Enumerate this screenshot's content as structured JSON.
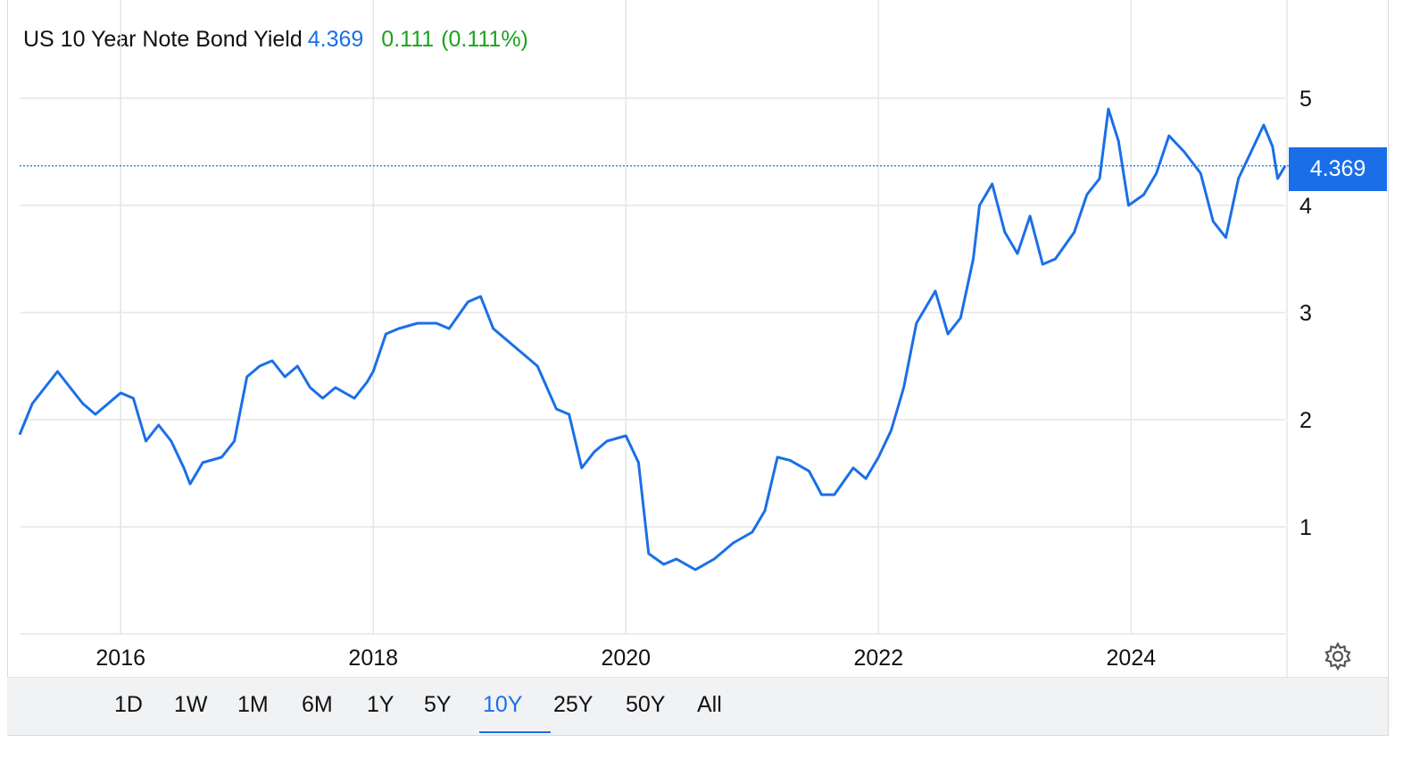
{
  "header": {
    "name": "US 10 Year Note Bond Yield",
    "last": "4.369",
    "change": "0.111",
    "change_pct": "(0.111%)"
  },
  "price_tag": "4.369",
  "colors": {
    "line": "#1a6fe8",
    "up": "#1ca21c",
    "grid": "#e6e6e6"
  },
  "ranges": [
    "1D",
    "1W",
    "1M",
    "6M",
    "1Y",
    "5Y",
    "10Y",
    "25Y",
    "50Y",
    "All"
  ],
  "active_range": "10Y",
  "settings_icon": "gear-icon",
  "chart_data": {
    "type": "line",
    "title": "US 10 Year Note Bond Yield",
    "xlabel": "",
    "ylabel": "",
    "x_ticks": [
      "2016",
      "2018",
      "2020",
      "2022",
      "2024"
    ],
    "y_ticks": [
      "1",
      "2",
      "3",
      "4",
      "5"
    ],
    "xlim": [
      2015.2,
      2025.22
    ],
    "ylim": [
      0,
      5
    ],
    "current_value": 4.369,
    "grid": true,
    "series": [
      {
        "points": [
          [
            2015.2,
            1.86
          ],
          [
            2015.3,
            2.15
          ],
          [
            2015.4,
            2.3
          ],
          [
            2015.5,
            2.45
          ],
          [
            2015.6,
            2.3
          ],
          [
            2015.7,
            2.15
          ],
          [
            2015.8,
            2.05
          ],
          [
            2015.9,
            2.15
          ],
          [
            2016.0,
            2.25
          ],
          [
            2016.1,
            2.2
          ],
          [
            2016.2,
            1.8
          ],
          [
            2016.3,
            1.95
          ],
          [
            2016.4,
            1.8
          ],
          [
            2016.5,
            1.55
          ],
          [
            2016.55,
            1.4
          ],
          [
            2016.65,
            1.6
          ],
          [
            2016.8,
            1.65
          ],
          [
            2016.9,
            1.8
          ],
          [
            2017.0,
            2.4
          ],
          [
            2017.1,
            2.5
          ],
          [
            2017.2,
            2.55
          ],
          [
            2017.3,
            2.4
          ],
          [
            2017.4,
            2.5
          ],
          [
            2017.5,
            2.3
          ],
          [
            2017.6,
            2.2
          ],
          [
            2017.7,
            2.3
          ],
          [
            2017.85,
            2.2
          ],
          [
            2017.95,
            2.35
          ],
          [
            2018.0,
            2.45
          ],
          [
            2018.1,
            2.8
          ],
          [
            2018.2,
            2.85
          ],
          [
            2018.35,
            2.9
          ],
          [
            2018.5,
            2.9
          ],
          [
            2018.6,
            2.85
          ],
          [
            2018.75,
            3.1
          ],
          [
            2018.85,
            3.15
          ],
          [
            2018.95,
            2.85
          ],
          [
            2019.1,
            2.7
          ],
          [
            2019.2,
            2.6
          ],
          [
            2019.3,
            2.5
          ],
          [
            2019.45,
            2.1
          ],
          [
            2019.55,
            2.05
          ],
          [
            2019.65,
            1.55
          ],
          [
            2019.75,
            1.7
          ],
          [
            2019.85,
            1.8
          ],
          [
            2020.0,
            1.85
          ],
          [
            2020.1,
            1.6
          ],
          [
            2020.18,
            0.75
          ],
          [
            2020.3,
            0.65
          ],
          [
            2020.4,
            0.7
          ],
          [
            2020.55,
            0.6
          ],
          [
            2020.7,
            0.7
          ],
          [
            2020.85,
            0.85
          ],
          [
            2021.0,
            0.95
          ],
          [
            2021.1,
            1.15
          ],
          [
            2021.2,
            1.65
          ],
          [
            2021.3,
            1.62
          ],
          [
            2021.45,
            1.52
          ],
          [
            2021.55,
            1.3
          ],
          [
            2021.65,
            1.3
          ],
          [
            2021.8,
            1.55
          ],
          [
            2021.9,
            1.45
          ],
          [
            2022.0,
            1.65
          ],
          [
            2022.1,
            1.9
          ],
          [
            2022.2,
            2.3
          ],
          [
            2022.3,
            2.9
          ],
          [
            2022.45,
            3.2
          ],
          [
            2022.55,
            2.8
          ],
          [
            2022.65,
            2.95
          ],
          [
            2022.75,
            3.5
          ],
          [
            2022.8,
            4.0
          ],
          [
            2022.9,
            4.2
          ],
          [
            2023.0,
            3.75
          ],
          [
            2023.1,
            3.55
          ],
          [
            2023.2,
            3.9
          ],
          [
            2023.3,
            3.45
          ],
          [
            2023.4,
            3.5
          ],
          [
            2023.55,
            3.75
          ],
          [
            2023.65,
            4.1
          ],
          [
            2023.75,
            4.25
          ],
          [
            2023.82,
            4.9
          ],
          [
            2023.9,
            4.6
          ],
          [
            2023.98,
            4.0
          ],
          [
            2024.1,
            4.1
          ],
          [
            2024.2,
            4.3
          ],
          [
            2024.3,
            4.65
          ],
          [
            2024.42,
            4.5
          ],
          [
            2024.55,
            4.3
          ],
          [
            2024.65,
            3.85
          ],
          [
            2024.75,
            3.7
          ],
          [
            2024.85,
            4.25
          ],
          [
            2024.95,
            4.5
          ],
          [
            2025.05,
            4.75
          ],
          [
            2025.12,
            4.55
          ],
          [
            2025.16,
            4.25
          ],
          [
            2025.22,
            4.369
          ]
        ]
      }
    ]
  }
}
